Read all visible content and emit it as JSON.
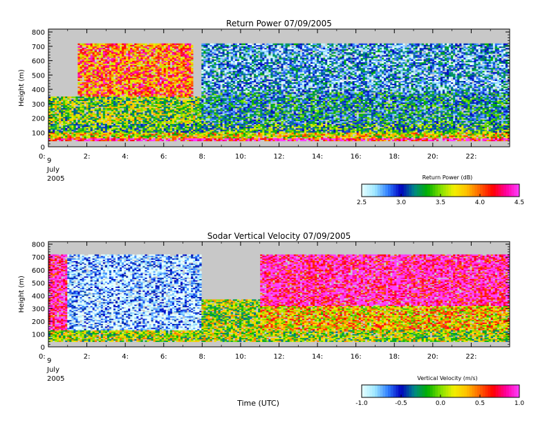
{
  "chart_data": [
    {
      "type": "heatmap",
      "title": "Return Power 07/09/2005",
      "ylabel": "Height (m)",
      "ylim": [
        0,
        820
      ],
      "yticks": [
        0,
        100,
        200,
        300,
        400,
        500,
        600,
        700,
        800
      ],
      "xlim": [
        0,
        24
      ],
      "xticks": [
        0,
        2,
        4,
        6,
        8,
        10,
        12,
        14,
        16,
        18,
        20,
        22
      ],
      "xtick_labels": [
        "0:",
        "2:",
        "4:",
        "6:",
        "8:",
        "10:",
        "12:",
        "14:",
        "16:",
        "18:",
        "20:",
        "22:"
      ],
      "date_label_lines": [
        "9",
        "July",
        "2005"
      ],
      "colorbar": {
        "label": "Return Power (dB)",
        "min": 2.5,
        "max": 4.5,
        "ticks": [
          2.5,
          3.0,
          3.5,
          4.0,
          4.5
        ],
        "tick_labels": [
          "2.5",
          "3.0",
          "3.5",
          "4.0",
          "4.5"
        ],
        "colors": [
          "#e8ffff",
          "#a0e8ff",
          "#3080ff",
          "#0000c0",
          "#008888",
          "#00b000",
          "#80e000",
          "#f0f000",
          "#ffc000",
          "#ff6000",
          "#ff0000",
          "#ff00a0",
          "#ff40ff"
        ]
      },
      "missing_color": "#c8c8c8",
      "regions": [
        {
          "hours": [
            0,
            24
          ],
          "heights": [
            0,
            40
          ],
          "value": null
        },
        {
          "hours": [
            0,
            24
          ],
          "heights": [
            40,
            60
          ],
          "value": 4.3
        },
        {
          "hours": [
            0,
            24
          ],
          "heights": [
            60,
            100
          ],
          "value": 3.7
        },
        {
          "hours": [
            0,
            24
          ],
          "heights": [
            100,
            160
          ],
          "value": 3.3
        },
        {
          "hours": [
            0,
            8
          ],
          "heights": [
            160,
            350
          ],
          "value": 3.5
        },
        {
          "hours": [
            1.5,
            7.5
          ],
          "heights": [
            350,
            720
          ],
          "value": 4.0
        },
        {
          "hours": [
            8,
            24
          ],
          "heights": [
            160,
            380
          ],
          "value": 3.1
        },
        {
          "hours": [
            8,
            24
          ],
          "heights": [
            380,
            720
          ],
          "value": 2.9
        },
        {
          "hours": [
            0,
            24
          ],
          "heights": [
            720,
            820
          ],
          "value": null
        }
      ]
    },
    {
      "type": "heatmap",
      "title": "Sodar Vertical Velocity 07/09/2005",
      "ylabel": "Height (m)",
      "xlabel": "Time (UTC)",
      "ylim": [
        0,
        820
      ],
      "yticks": [
        0,
        100,
        200,
        300,
        400,
        500,
        600,
        700,
        800
      ],
      "xlim": [
        0,
        24
      ],
      "xticks": [
        0,
        2,
        4,
        6,
        8,
        10,
        12,
        14,
        16,
        18,
        20,
        22
      ],
      "xtick_labels": [
        "0:",
        "2:",
        "4:",
        "6:",
        "8:",
        "10:",
        "12:",
        "14:",
        "16:",
        "18:",
        "20:",
        "22:"
      ],
      "date_label_lines": [
        "9",
        "July",
        "2005"
      ],
      "colorbar": {
        "label": "Vertical Velocity (m/s)",
        "min": -1.0,
        "max": 1.0,
        "ticks": [
          -1.0,
          -0.5,
          0.0,
          0.5,
          1.0
        ],
        "tick_labels": [
          "-1.0",
          "-0.5",
          "0.0",
          "0.5",
          "1.0"
        ],
        "colors": [
          "#e8ffff",
          "#a0e8ff",
          "#3080ff",
          "#0000c0",
          "#008888",
          "#00b000",
          "#80e000",
          "#f0f000",
          "#ffc000",
          "#ff6000",
          "#ff0000",
          "#ff00a0",
          "#ff40ff"
        ]
      },
      "missing_color": "#c8c8c8",
      "regions": [
        {
          "hours": [
            0,
            24
          ],
          "heights": [
            40,
            130
          ],
          "value": 0.05
        },
        {
          "hours": [
            0,
            1
          ],
          "heights": [
            130,
            720
          ],
          "value": 0.9
        },
        {
          "hours": [
            1,
            8
          ],
          "heights": [
            130,
            720
          ],
          "value": -0.85
        },
        {
          "hours": [
            8,
            11
          ],
          "heights": [
            130,
            370
          ],
          "value": 0.05
        },
        {
          "hours": [
            11,
            24
          ],
          "heights": [
            130,
            320
          ],
          "value": 0.3
        },
        {
          "hours": [
            11,
            24
          ],
          "heights": [
            320,
            720
          ],
          "value": 0.9
        },
        {
          "hours": [
            0,
            24
          ],
          "heights": [
            720,
            820
          ],
          "value": null
        }
      ]
    }
  ]
}
